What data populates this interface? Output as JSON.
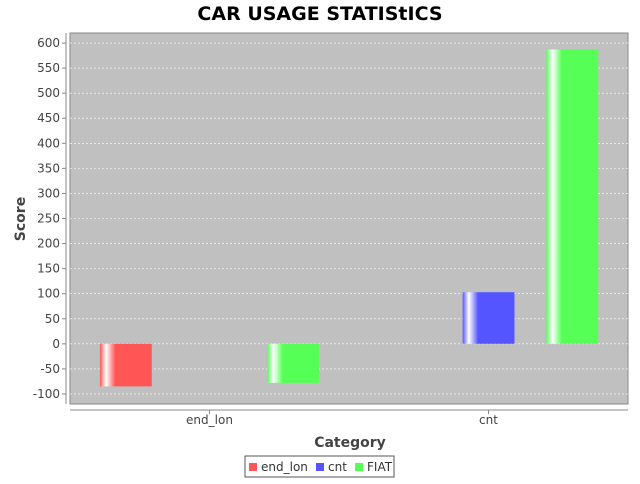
{
  "chart_data": {
    "type": "bar",
    "title": "CAR USAGE STATIStICS",
    "xlabel": "Category",
    "ylabel": "Score",
    "categories": [
      "end_lon",
      "cnt"
    ],
    "series": [
      {
        "name": "end_lon",
        "color": "#ff5555",
        "values": [
          -85,
          null
        ]
      },
      {
        "name": "cnt",
        "color": "#5555ff",
        "values": [
          null,
          103
        ]
      },
      {
        "name": "FIAT",
        "color": "#55ff55",
        "values": [
          -78,
          587
        ]
      }
    ],
    "ylim": [
      -120,
      620
    ],
    "yticks": [
      -100,
      -50,
      0,
      50,
      100,
      150,
      200,
      250,
      300,
      350,
      400,
      450,
      500,
      550,
      600
    ],
    "grid": true,
    "legend_position": "bottom",
    "plot_background": "#c0c0c0"
  }
}
